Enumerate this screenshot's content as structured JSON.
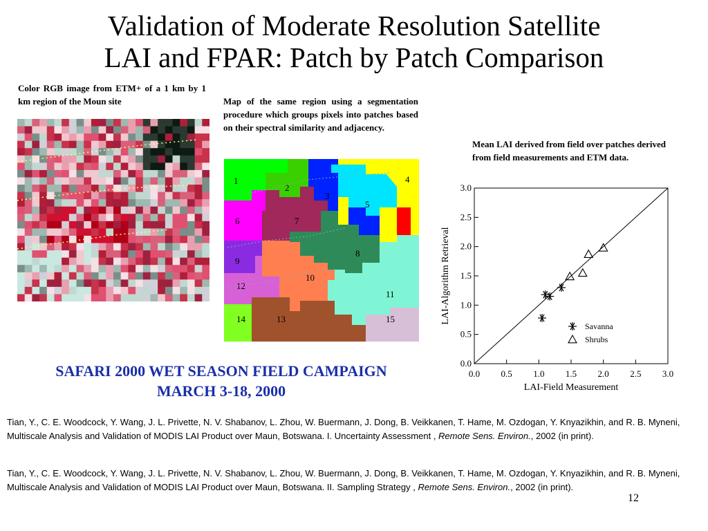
{
  "slide": {
    "title_line1": "Validation of Moderate Resolution Satellite",
    "title_line2": "LAI and FPAR: Patch by Patch Comparison",
    "page_number": "12"
  },
  "captions": {
    "left": "Color RGB image from ETM+ of a 1 km by 1 km region of the Moun site",
    "middle": "Map of the same region using a segmentation procedure which groups pixels into patches based on their spectral similarity and adjacency.",
    "right": "Mean LAI derived from field over patches derived from field measurements and ETM data."
  },
  "patch_map": {
    "labels": [
      "1",
      "2",
      "3",
      "4",
      "5",
      "6",
      "7",
      "8",
      "9",
      "10",
      "11",
      "12",
      "13",
      "14",
      "15"
    ]
  },
  "campaign": {
    "line1": "SAFARI 2000 WET SEASON FIELD CAMPAIGN",
    "line2": "MARCH 3-18, 2000"
  },
  "references": [
    {
      "text": "Tian, Y., C. E. Woodcock, Y. Wang, J. L. Privette, N. V. Shabanov, L. Zhou, W. Buermann, J. Dong, B. Veikkanen, T. Hame, M. Ozdogan, Y. Knyazikhin, and R. B. Myneni, Multiscale Analysis and Validation of MODIS LAI Product over Maun, Botswana. I. Uncertainty Assessment , ",
      "journal": "Remote Sens. Environ.",
      "tail": ", 2002 (in print)."
    },
    {
      "text": "Tian, Y., C. E. Woodcock, Y. Wang, J. L. Privette, N. V. Shabanov, L. Zhou, W. Buermann, J. Dong, B. Veikkanen, T. Hame, M. Ozdogan, Y. Knyazikhin, and R. B. Myneni, Multiscale Analysis and Validation of MODIS LAI Product over Maun, Botswana. II. Sampling Strategy , ",
      "journal": "Remote Sens. Environ.",
      "tail": ", 2002 (in print)."
    }
  ],
  "chart_data": {
    "type": "scatter",
    "xlabel": "LAI-Field Measurement",
    "ylabel": "LAI-Algorithm Retrieval",
    "xlim": [
      0.0,
      3.0
    ],
    "ylim": [
      0.0,
      3.0
    ],
    "xticks": [
      "0.0",
      "0.5",
      "1.0",
      "1.5",
      "2.0",
      "2.5",
      "3.0"
    ],
    "yticks": [
      "0.0",
      "0.5",
      "1.0",
      "1.5",
      "2.0",
      "2.5",
      "3.0"
    ],
    "grid": false,
    "legend_position": "bottom-right",
    "one_to_one_line": true,
    "series": [
      {
        "name": "Savanna",
        "marker": "asterisk",
        "x": [
          1.05,
          1.1,
          1.17,
          1.35
        ],
        "y": [
          0.78,
          1.18,
          1.15,
          1.3
        ]
      },
      {
        "name": "Shrubs",
        "marker": "triangle",
        "x": [
          1.48,
          1.68,
          1.77,
          2.0
        ],
        "y": [
          1.49,
          1.55,
          1.87,
          1.98
        ]
      }
    ]
  }
}
